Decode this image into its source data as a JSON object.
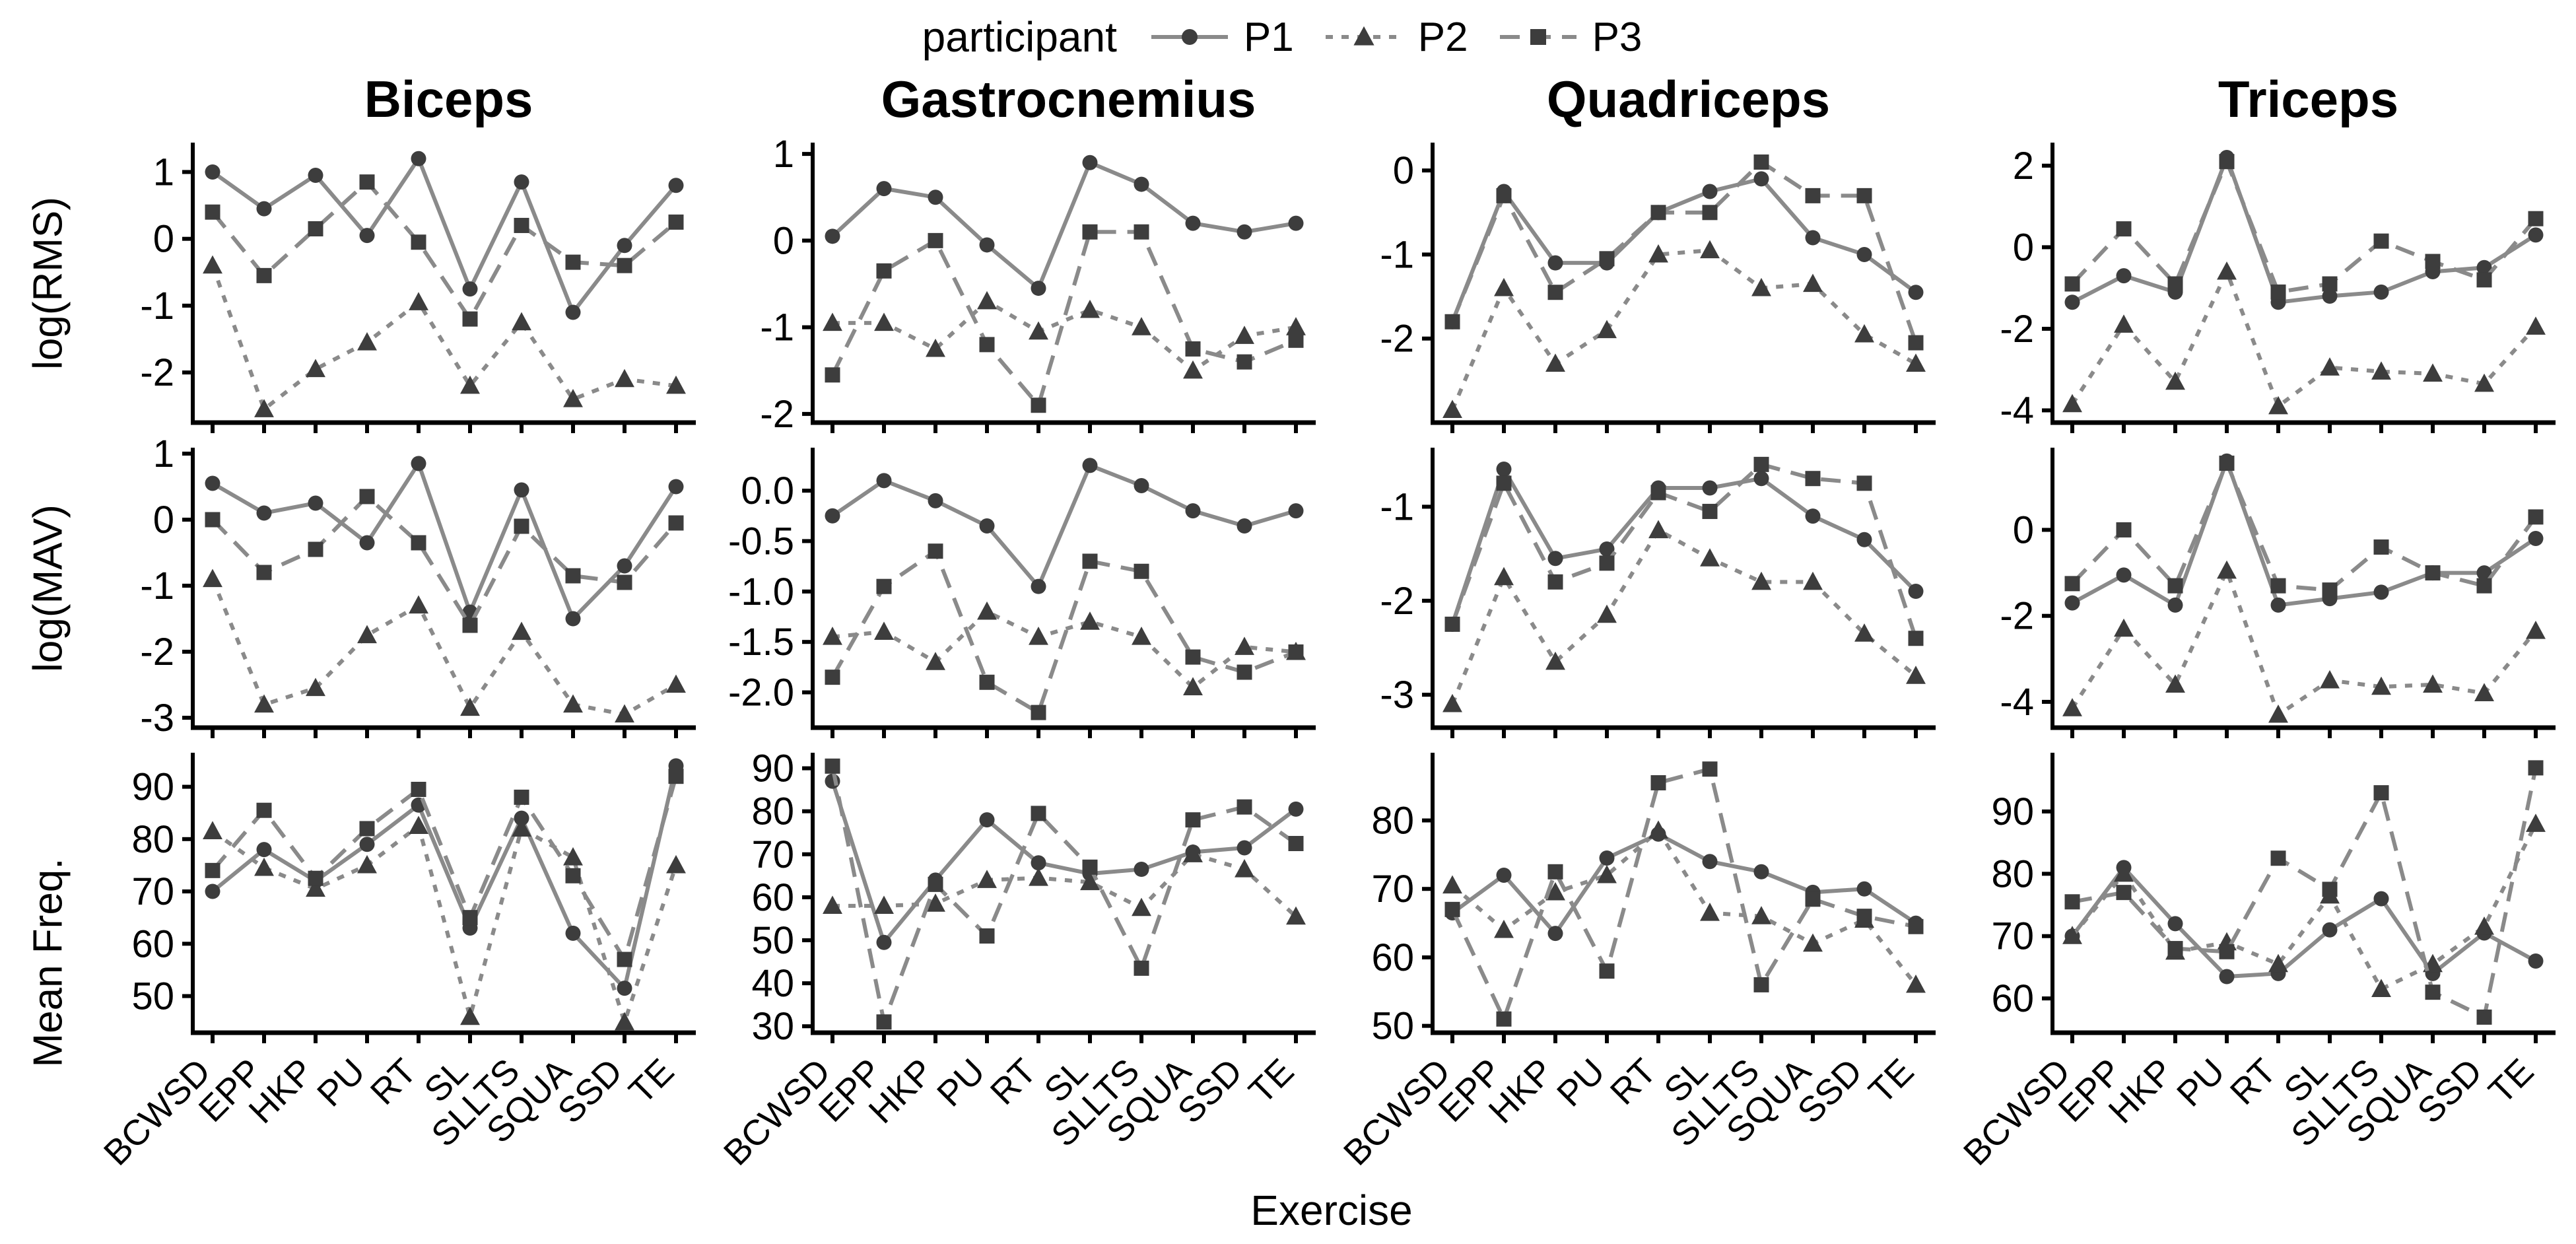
{
  "legend": {
    "title": "participant",
    "items": [
      {
        "id": "P1",
        "label": "P1",
        "marker": "circle",
        "line": "solid"
      },
      {
        "id": "P2",
        "label": "P2",
        "marker": "triangle",
        "line": "dotted"
      },
      {
        "id": "P3",
        "label": "P3",
        "marker": "square",
        "line": "dashed"
      }
    ]
  },
  "xlabel": "Exercise",
  "style": {
    "marker_color": "#3d3d3d",
    "line_color": "#8a8a8a",
    "axis_color": "#000000",
    "background": "#ffffff"
  },
  "chart_data": {
    "type": "line",
    "x_categories": [
      "BCWSD",
      "EPP",
      "HKP",
      "PU",
      "RT",
      "SL",
      "SLLTS",
      "SQUA",
      "SSD",
      "TE"
    ],
    "columns": [
      "Biceps",
      "Gastrocnemius",
      "Quadriceps",
      "Triceps"
    ],
    "rows": [
      "log(RMS)",
      "log(MAV)",
      "Mean Freq."
    ],
    "series_names": [
      "P1",
      "P2",
      "P3"
    ],
    "legend_position": "top",
    "grid": "off",
    "panels": [
      {
        "col": "Biceps",
        "row": "log(RMS)",
        "y_tick_vals": [
          1,
          0,
          -1,
          -2
        ],
        "y_tick_labels": [
          "1",
          "0",
          "-1",
          "-2"
        ],
        "y_domain": [
          -2.75,
          1.4
        ],
        "series": {
          "P1": [
            1.0,
            0.45,
            0.95,
            0.05,
            1.2,
            -0.75,
            0.85,
            -1.1,
            -0.1,
            0.8
          ],
          "P2": [
            -0.4,
            -2.55,
            -1.95,
            -1.55,
            -0.95,
            -2.2,
            -1.25,
            -2.4,
            -2.1,
            -2.2
          ],
          "P3": [
            0.4,
            -0.55,
            0.15,
            0.85,
            -0.05,
            -1.2,
            0.2,
            -0.35,
            -0.4,
            0.25
          ]
        }
      },
      {
        "col": "Gastrocnemius",
        "row": "log(RMS)",
        "y_tick_vals": [
          1,
          0,
          -1,
          -2
        ],
        "y_tick_labels": [
          "1",
          "0",
          "-1",
          "-2"
        ],
        "y_domain": [
          -2.1,
          1.1
        ],
        "series": {
          "P1": [
            0.05,
            0.6,
            0.5,
            -0.05,
            -0.55,
            0.9,
            0.65,
            0.2,
            0.1,
            0.2
          ],
          "P2": [
            -0.95,
            -0.95,
            -1.25,
            -0.7,
            -1.05,
            -0.8,
            -1.0,
            -1.5,
            -1.1,
            -1.0
          ],
          "P3": [
            -1.55,
            -0.35,
            0.0,
            -1.2,
            -1.9,
            0.1,
            0.1,
            -1.25,
            -1.4,
            -1.15
          ]
        }
      },
      {
        "col": "Quadriceps",
        "row": "log(RMS)",
        "y_tick_vals": [
          0,
          -1,
          -2
        ],
        "y_tick_labels": [
          "0",
          "-1",
          "-2"
        ],
        "y_domain": [
          -3.0,
          0.3
        ],
        "series": {
          "P1": [
            -1.8,
            -0.25,
            -1.1,
            -1.1,
            -0.5,
            -0.25,
            -0.1,
            -0.8,
            -1.0,
            -1.45
          ],
          "P2": [
            -2.85,
            -1.4,
            -2.3,
            -1.9,
            -1.0,
            -0.95,
            -1.4,
            -1.35,
            -1.95,
            -2.3
          ],
          "P3": [
            -1.8,
            -0.3,
            -1.45,
            -1.05,
            -0.5,
            -0.5,
            0.1,
            -0.3,
            -0.3,
            -2.05
          ]
        }
      },
      {
        "col": "Triceps",
        "row": "log(RMS)",
        "y_tick_vals": [
          2,
          0,
          -2,
          -4
        ],
        "y_tick_labels": [
          "2",
          "0",
          "-2",
          "-4"
        ],
        "y_domain": [
          -4.3,
          2.5
        ],
        "series": {
          "P1": [
            -1.35,
            -0.7,
            -1.1,
            2.2,
            -1.35,
            -1.2,
            -1.1,
            -0.6,
            -0.5,
            0.3
          ],
          "P2": [
            -3.85,
            -1.9,
            -3.3,
            -0.6,
            -3.9,
            -2.95,
            -3.05,
            -3.1,
            -3.35,
            -1.95
          ],
          "P3": [
            -0.9,
            0.45,
            -0.9,
            2.1,
            -1.1,
            -0.9,
            0.15,
            -0.35,
            -0.8,
            0.7
          ]
        }
      },
      {
        "col": "Biceps",
        "row": "log(MAV)",
        "y_tick_vals": [
          1,
          0,
          -1,
          -2,
          -3
        ],
        "y_tick_labels": [
          "1",
          "0",
          "-1",
          "-2",
          "-3"
        ],
        "y_domain": [
          -3.15,
          1.05
        ],
        "series": {
          "P1": [
            0.55,
            0.1,
            0.25,
            -0.35,
            0.85,
            -1.4,
            0.45,
            -1.5,
            -0.7,
            0.5
          ],
          "P2": [
            -0.9,
            -2.8,
            -2.55,
            -1.75,
            -1.3,
            -2.85,
            -1.7,
            -2.8,
            -2.95,
            -2.5
          ],
          "P3": [
            0.0,
            -0.8,
            -0.45,
            0.35,
            -0.35,
            -1.6,
            -0.1,
            -0.85,
            -0.95,
            -0.05
          ]
        }
      },
      {
        "col": "Gastrocnemius",
        "row": "log(MAV)",
        "y_tick_vals": [
          0.0,
          -0.5,
          -1.0,
          -1.5,
          -2.0
        ],
        "y_tick_labels": [
          "0.0",
          "-0.5",
          "-1.0",
          "-1.5",
          "-2.0"
        ],
        "y_domain": [
          -2.35,
          0.4
        ],
        "series": {
          "P1": [
            -0.25,
            0.1,
            -0.1,
            -0.35,
            -0.95,
            0.25,
            0.05,
            -0.2,
            -0.35,
            -0.2
          ],
          "P2": [
            -1.45,
            -1.4,
            -1.7,
            -1.2,
            -1.45,
            -1.3,
            -1.45,
            -1.95,
            -1.55,
            -1.6
          ],
          "P3": [
            -1.85,
            -0.95,
            -0.6,
            -1.9,
            -2.2,
            -0.7,
            -0.8,
            -1.65,
            -1.8,
            -1.6
          ]
        }
      },
      {
        "col": "Quadriceps",
        "row": "log(MAV)",
        "y_tick_vals": [
          -1,
          -2,
          -3
        ],
        "y_tick_labels": [
          "-1",
          "-2",
          "-3"
        ],
        "y_domain": [
          -3.35,
          -0.4
        ],
        "series": {
          "P1": [
            -2.25,
            -0.6,
            -1.55,
            -1.45,
            -0.8,
            -0.8,
            -0.7,
            -1.1,
            -1.35,
            -1.9
          ],
          "P2": [
            -3.1,
            -1.75,
            -2.65,
            -2.15,
            -1.25,
            -1.55,
            -1.8,
            -1.8,
            -2.35,
            -2.8
          ],
          "P3": [
            -2.25,
            -0.75,
            -1.8,
            -1.6,
            -0.85,
            -1.05,
            -0.55,
            -0.7,
            -0.75,
            -2.4
          ]
        }
      },
      {
        "col": "Triceps",
        "row": "log(MAV)",
        "y_tick_vals": [
          0,
          -2,
          -4
        ],
        "y_tick_labels": [
          "0",
          "-2",
          "-4"
        ],
        "y_domain": [
          -4.6,
          1.85
        ],
        "series": {
          "P1": [
            -1.7,
            -1.05,
            -1.75,
            1.6,
            -1.75,
            -1.6,
            -1.45,
            -1.0,
            -1.0,
            -0.2
          ],
          "P2": [
            -4.15,
            -2.3,
            -3.6,
            -0.95,
            -4.3,
            -3.5,
            -3.65,
            -3.6,
            -3.8,
            -2.35
          ],
          "P3": [
            -1.25,
            0.0,
            -1.3,
            1.55,
            -1.3,
            -1.4,
            -0.4,
            -1.0,
            -1.3,
            0.3
          ]
        }
      },
      {
        "col": "Biceps",
        "row": "Mean Freq.",
        "y_tick_vals": [
          90,
          80,
          70,
          60,
          50
        ],
        "y_tick_labels": [
          "90",
          "80",
          "70",
          "60",
          "50"
        ],
        "y_domain": [
          43,
          96
        ],
        "series": {
          "P1": [
            70,
            78,
            72,
            79,
            86.5,
            63,
            84,
            62,
            51.5,
            94
          ],
          "P2": [
            81.5,
            74.5,
            70.5,
            75,
            82.5,
            46,
            82,
            76.5,
            45,
            75
          ],
          "P3": [
            74,
            85.5,
            72.5,
            82,
            89.5,
            65,
            88,
            73,
            57,
            92
          ]
        }
      },
      {
        "col": "Gastrocnemius",
        "row": "Mean Freq.",
        "y_tick_vals": [
          90,
          80,
          70,
          60,
          50,
          40,
          30
        ],
        "y_tick_labels": [
          "90",
          "80",
          "70",
          "60",
          "50",
          "40",
          "30"
        ],
        "y_domain": [
          28.5,
          93
        ],
        "series": {
          "P1": [
            87,
            49.5,
            64,
            78,
            68,
            65.5,
            66.5,
            70.5,
            71.5,
            80.5
          ],
          "P2": [
            58,
            58,
            58.5,
            64,
            64.5,
            63.5,
            57.5,
            70,
            66.5,
            55.5
          ],
          "P3": [
            90.5,
            31,
            63,
            51,
            79.5,
            67,
            43.5,
            78,
            81,
            72.5
          ]
        }
      },
      {
        "col": "Quadriceps",
        "row": "Mean Freq.",
        "y_tick_vals": [
          80,
          70,
          60,
          50
        ],
        "y_tick_labels": [
          "80",
          "70",
          "60",
          "50"
        ],
        "y_domain": [
          49,
          89.5
        ],
        "series": {
          "P1": [
            66.5,
            72,
            63.5,
            74.5,
            78,
            74,
            72.5,
            69.5,
            70,
            65
          ],
          "P2": [
            70.5,
            64,
            69.5,
            72,
            78.5,
            66.5,
            66,
            62,
            65.5,
            56
          ],
          "P3": [
            67,
            51,
            72.5,
            58,
            85.5,
            87.5,
            56,
            68.5,
            66,
            64.5
          ]
        }
      },
      {
        "col": "Triceps",
        "row": "Mean Freq.",
        "y_tick_vals": [
          90,
          80,
          70,
          60
        ],
        "y_tick_labels": [
          "90",
          "80",
          "70",
          "60"
        ],
        "y_domain": [
          54.5,
          99
        ],
        "series": {
          "P1": [
            70,
            81,
            72,
            63.5,
            64,
            71,
            76,
            64,
            70.5,
            66
          ],
          "P2": [
            70,
            80,
            67.5,
            69,
            65.5,
            76.5,
            61.5,
            65.5,
            71.5,
            88
          ],
          "P3": [
            75.5,
            77,
            68,
            67.5,
            82.5,
            77.5,
            93,
            61,
            57,
            97
          ]
        }
      }
    ]
  }
}
